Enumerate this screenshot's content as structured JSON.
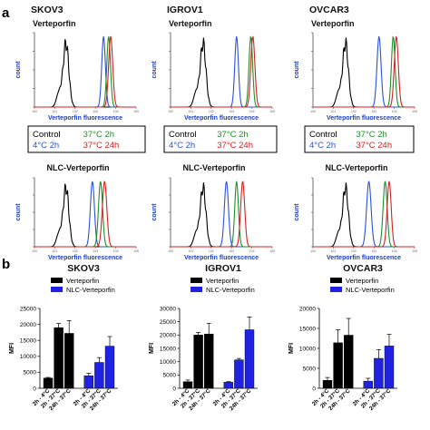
{
  "panel_a": {
    "letter": "a"
  },
  "panel_b": {
    "letter": "b"
  },
  "cell_lines": [
    "SKOV3",
    "IGROV1",
    "OVCAR3"
  ],
  "legend": {
    "control": "Control",
    "c4_2h": "4°C 2h",
    "c37_2h": "37°C 2h",
    "c37_24h": "37°C 24h"
  },
  "colors": {
    "control": "#000000",
    "c4_2h": "#2a52d8",
    "c37_2h": "#1f8f2a",
    "c37_24h": "#d42020",
    "verteporfin_bar": "#000000",
    "nlc_bar": "#1f22e0",
    "axis_text": "#1f3fbf"
  },
  "chart_data": [
    {
      "type": "line",
      "title": "SKOV3",
      "subtitle": "Verteporfin",
      "xlabel": "Verteporfin fluorescence",
      "ylabel": "count",
      "xscale": "log",
      "series": [
        {
          "name": "Control",
          "peak_log10": 1.55,
          "width": 0.14
        },
        {
          "name": "4°C 2h",
          "peak_log10": 3.4,
          "width": 0.09
        },
        {
          "name": "37°C 2h",
          "peak_log10": 3.65,
          "width": 0.09
        },
        {
          "name": "37°C 24h",
          "peak_log10": 3.75,
          "width": 0.1
        }
      ]
    },
    {
      "type": "line",
      "title": "IGROV1",
      "subtitle": "Verteporfin",
      "xlabel": "Verteporfin fluorescence",
      "ylabel": "count",
      "xscale": "log",
      "series": [
        {
          "name": "Control",
          "peak_log10": 1.6,
          "width": 0.14
        },
        {
          "name": "4°C 2h",
          "peak_log10": 3.25,
          "width": 0.09
        },
        {
          "name": "37°C 2h",
          "peak_log10": 3.95,
          "width": 0.09
        },
        {
          "name": "37°C 24h",
          "peak_log10": 4.05,
          "width": 0.1
        }
      ]
    },
    {
      "type": "line",
      "title": "OVCAR3",
      "subtitle": "Verteporfin",
      "xlabel": "Verteporfin fluorescence",
      "ylabel": "count",
      "xscale": "log",
      "series": [
        {
          "name": "Control",
          "peak_log10": 1.6,
          "width": 0.14
        },
        {
          "name": "4°C 2h",
          "peak_log10": 3.25,
          "width": 0.1
        },
        {
          "name": "37°C 2h",
          "peak_log10": 3.95,
          "width": 0.09
        },
        {
          "name": "37°C 24h",
          "peak_log10": 4.1,
          "width": 0.1
        }
      ]
    },
    {
      "type": "line",
      "subtitle": "NLC-Verteporfin",
      "xlabel": "Verteporfin fluorescence",
      "ylabel": "count",
      "xscale": "log",
      "series": [
        {
          "name": "Control",
          "peak_log10": 1.55,
          "width": 0.14
        },
        {
          "name": "4°C 2h",
          "peak_log10": 2.85,
          "width": 0.1
        },
        {
          "name": "37°C 2h",
          "peak_log10": 3.25,
          "width": 0.1
        },
        {
          "name": "37°C 24h",
          "peak_log10": 3.45,
          "width": 0.11
        }
      ]
    },
    {
      "type": "line",
      "subtitle": "NLC-Verteporfin",
      "xlabel": "Verteporfin fluorescence",
      "ylabel": "count",
      "xscale": "log",
      "series": [
        {
          "name": "Control",
          "peak_log10": 1.6,
          "width": 0.14
        },
        {
          "name": "4°C 2h",
          "peak_log10": 2.75,
          "width": 0.1
        },
        {
          "name": "37°C 2h",
          "peak_log10": 3.25,
          "width": 0.09
        },
        {
          "name": "37°C 24h",
          "peak_log10": 3.55,
          "width": 0.1
        }
      ]
    },
    {
      "type": "line",
      "subtitle": "NLC-Verteporfin",
      "xlabel": "Verteporfin fluorescence",
      "ylabel": "count",
      "xscale": "log",
      "series": [
        {
          "name": "Control",
          "peak_log10": 1.6,
          "width": 0.14
        },
        {
          "name": "4°C 2h",
          "peak_log10": 2.75,
          "width": 0.11
        },
        {
          "name": "37°C 2h",
          "peak_log10": 3.55,
          "width": 0.1
        },
        {
          "name": "37°C 24h",
          "peak_log10": 3.75,
          "width": 0.1
        }
      ]
    },
    {
      "type": "bar",
      "title": "SKOV3",
      "ylabel": "MFI",
      "ylim": [
        0,
        25000
      ],
      "yticks": [
        0,
        5000,
        10000,
        15000,
        20000,
        25000
      ],
      "categories": [
        "2h - 4°C",
        "2h - 37°C",
        "24h - 37°C"
      ],
      "series": [
        {
          "name": "Verteporfin",
          "values": [
            3200,
            19000,
            17200
          ],
          "errors": [
            200,
            1300,
            4000
          ]
        },
        {
          "name": "NLC-Verteporfin",
          "values": [
            3900,
            8100,
            13200
          ],
          "errors": [
            800,
            1500,
            3000
          ]
        }
      ]
    },
    {
      "type": "bar",
      "title": "IGROV1",
      "ylabel": "MFI",
      "ylim": [
        0,
        30000
      ],
      "yticks": [
        0,
        5000,
        10000,
        15000,
        20000,
        25000,
        30000
      ],
      "categories": [
        "2h - 4°C",
        "2h - 37°C",
        "24h - 37°C"
      ],
      "series": [
        {
          "name": "Verteporfin",
          "values": [
            2500,
            20000,
            20400
          ],
          "errors": [
            600,
            1000,
            4000
          ]
        },
        {
          "name": "NLC-Verteporfin",
          "values": [
            2300,
            10700,
            22000
          ],
          "errors": [
            200,
            500,
            4800
          ]
        }
      ]
    },
    {
      "type": "bar",
      "title": "OVCAR3",
      "ylabel": "MFI",
      "ylim": [
        0,
        20000
      ],
      "yticks": [
        0,
        5000,
        10000,
        15000,
        20000
      ],
      "categories": [
        "2h - 4°C",
        "2h - 37°C",
        "24h - 37°C"
      ],
      "series": [
        {
          "name": "Verteporfin",
          "values": [
            2000,
            11400,
            13300
          ],
          "errors": [
            700,
            3300,
            4200
          ]
        },
        {
          "name": "NLC-Verteporfin",
          "values": [
            1800,
            7500,
            10600
          ],
          "errors": [
            700,
            2200,
            2900
          ]
        }
      ]
    }
  ]
}
